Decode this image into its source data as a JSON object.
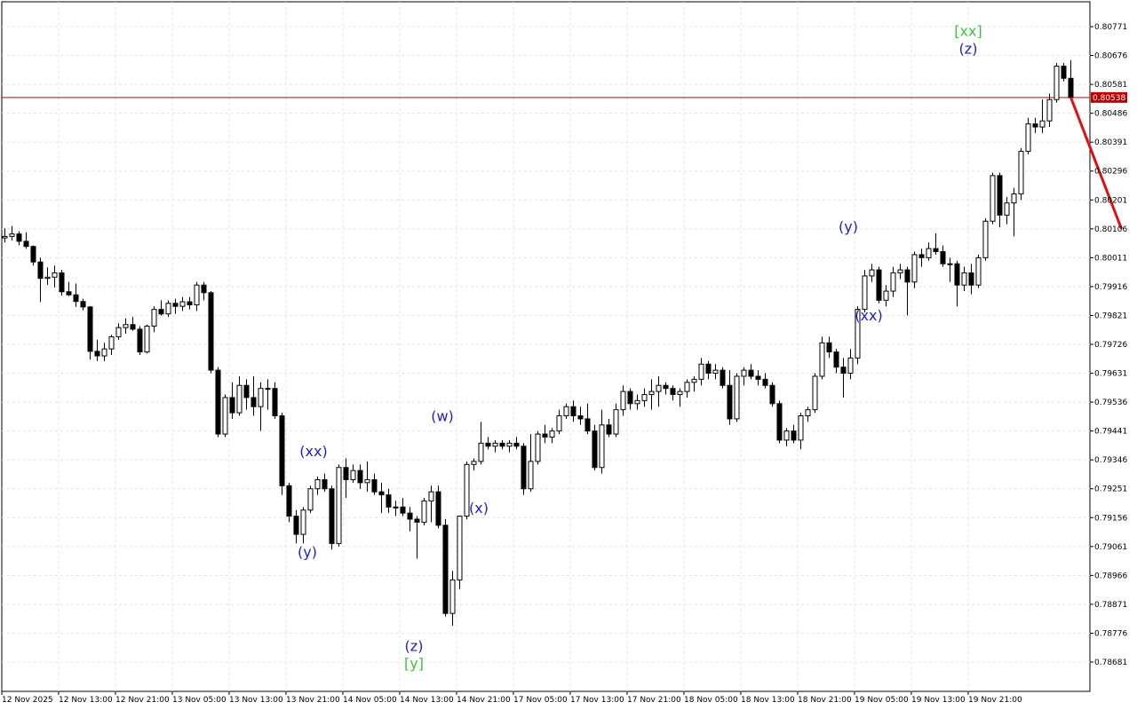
{
  "chart_data": {
    "type": "candlestick",
    "ylim": [
      0.78616,
      0.80826
    ],
    "y_ticks": [
      "0.80771",
      "0.80676",
      "0.80581",
      "0.80486",
      "0.80391",
      "0.80296",
      "0.80201",
      "0.80106",
      "0.80011",
      "0.79916",
      "0.79821",
      "0.79726",
      "0.79631",
      "0.79536",
      "0.79441",
      "0.79346",
      "0.79251",
      "0.79156",
      "0.79061",
      "0.78966",
      "0.78871",
      "0.78776",
      "0.78681"
    ],
    "x_ticks": [
      "12 Nov 2025",
      "12 Nov 13:00",
      "12 Nov 21:00",
      "13 Nov 05:00",
      "13 Nov 13:00",
      "13 Nov 21:00",
      "14 Nov 05:00",
      "14 Nov 13:00",
      "14 Nov 21:00",
      "17 Nov 05:00",
      "17 Nov 13:00",
      "17 Nov 21:00",
      "18 Nov 05:00",
      "18 Nov 13:00",
      "18 Nov 21:00",
      "19 Nov 05:00",
      "19 Nov 13:00",
      "19 Nov 21:00"
    ],
    "grid": true,
    "current_price": "0.80538",
    "current_price_value": 0.80538,
    "candles": [
      {
        "o": 0.80076,
        "h": 0.80108,
        "l": 0.80061,
        "c": 0.80081
      },
      {
        "o": 0.80081,
        "h": 0.80115,
        "l": 0.80068,
        "c": 0.80089
      },
      {
        "o": 0.80089,
        "h": 0.80098,
        "l": 0.80052,
        "c": 0.80065
      },
      {
        "o": 0.80065,
        "h": 0.80095,
        "l": 0.8004,
        "c": 0.80048
      },
      {
        "o": 0.80048,
        "h": 0.80051,
        "l": 0.79985,
        "c": 0.79997
      },
      {
        "o": 0.79997,
        "h": 0.80011,
        "l": 0.79865,
        "c": 0.79943
      },
      {
        "o": 0.79943,
        "h": 0.79979,
        "l": 0.79922,
        "c": 0.79947
      },
      {
        "o": 0.79947,
        "h": 0.79985,
        "l": 0.79913,
        "c": 0.79961
      },
      {
        "o": 0.79961,
        "h": 0.79971,
        "l": 0.79886,
        "c": 0.79899
      },
      {
        "o": 0.79899,
        "h": 0.79931,
        "l": 0.79885,
        "c": 0.79889
      },
      {
        "o": 0.79889,
        "h": 0.79926,
        "l": 0.79849,
        "c": 0.79867
      },
      {
        "o": 0.79867,
        "h": 0.79876,
        "l": 0.79838,
        "c": 0.79849
      },
      {
        "o": 0.79849,
        "h": 0.79852,
        "l": 0.79676,
        "c": 0.79703
      },
      {
        "o": 0.79703,
        "h": 0.79741,
        "l": 0.79671,
        "c": 0.79688
      },
      {
        "o": 0.79688,
        "h": 0.79731,
        "l": 0.79671,
        "c": 0.79711
      },
      {
        "o": 0.79711,
        "h": 0.79757,
        "l": 0.79691,
        "c": 0.79751
      },
      {
        "o": 0.79751,
        "h": 0.79795,
        "l": 0.79741,
        "c": 0.79781
      },
      {
        "o": 0.79781,
        "h": 0.79811,
        "l": 0.79761,
        "c": 0.79791
      },
      {
        "o": 0.79791,
        "h": 0.79816,
        "l": 0.79771,
        "c": 0.79776
      },
      {
        "o": 0.79776,
        "h": 0.79786,
        "l": 0.79691,
        "c": 0.79701
      },
      {
        "o": 0.79701,
        "h": 0.79791,
        "l": 0.79696,
        "c": 0.79786
      },
      {
        "o": 0.79786,
        "h": 0.79851,
        "l": 0.79766,
        "c": 0.79841
      },
      {
        "o": 0.79841,
        "h": 0.79871,
        "l": 0.79821,
        "c": 0.79826
      },
      {
        "o": 0.79826,
        "h": 0.79871,
        "l": 0.79816,
        "c": 0.79861
      },
      {
        "o": 0.79861,
        "h": 0.79876,
        "l": 0.79826,
        "c": 0.79851
      },
      {
        "o": 0.79851,
        "h": 0.79881,
        "l": 0.79836,
        "c": 0.79866
      },
      {
        "o": 0.79866,
        "h": 0.79881,
        "l": 0.79841,
        "c": 0.79856
      },
      {
        "o": 0.79856,
        "h": 0.79931,
        "l": 0.79836,
        "c": 0.79921
      },
      {
        "o": 0.79921,
        "h": 0.79931,
        "l": 0.79871,
        "c": 0.79896
      },
      {
        "o": 0.79896,
        "h": 0.79901,
        "l": 0.79631,
        "c": 0.79641
      },
      {
        "o": 0.79641,
        "h": 0.79651,
        "l": 0.79421,
        "c": 0.79431
      },
      {
        "o": 0.79431,
        "h": 0.79561,
        "l": 0.79421,
        "c": 0.79551
      },
      {
        "o": 0.79551,
        "h": 0.79601,
        "l": 0.79481,
        "c": 0.79501
      },
      {
        "o": 0.79501,
        "h": 0.79621,
        "l": 0.79491,
        "c": 0.79591
      },
      {
        "o": 0.79591,
        "h": 0.79611,
        "l": 0.79511,
        "c": 0.79551
      },
      {
        "o": 0.79551,
        "h": 0.79621,
        "l": 0.79491,
        "c": 0.79521
      },
      {
        "o": 0.79521,
        "h": 0.79601,
        "l": 0.79441,
        "c": 0.79581
      },
      {
        "o": 0.79581,
        "h": 0.79611,
        "l": 0.79511,
        "c": 0.79581
      },
      {
        "o": 0.79581,
        "h": 0.79601,
        "l": 0.79481,
        "c": 0.79491
      },
      {
        "o": 0.79491,
        "h": 0.79501,
        "l": 0.79231,
        "c": 0.79261
      },
      {
        "o": 0.79261,
        "h": 0.79271,
        "l": 0.79141,
        "c": 0.79161
      },
      {
        "o": 0.79161,
        "h": 0.79181,
        "l": 0.79071,
        "c": 0.79101
      },
      {
        "o": 0.79101,
        "h": 0.79191,
        "l": 0.79071,
        "c": 0.79181
      },
      {
        "o": 0.79181,
        "h": 0.79261,
        "l": 0.79171,
        "c": 0.79251
      },
      {
        "o": 0.79251,
        "h": 0.79291,
        "l": 0.79231,
        "c": 0.79281
      },
      {
        "o": 0.79281,
        "h": 0.79301,
        "l": 0.79241,
        "c": 0.79251
      },
      {
        "o": 0.79251,
        "h": 0.79261,
        "l": 0.79051,
        "c": 0.79071
      },
      {
        "o": 0.79071,
        "h": 0.79331,
        "l": 0.79061,
        "c": 0.79321
      },
      {
        "o": 0.79321,
        "h": 0.79351,
        "l": 0.79221,
        "c": 0.79281
      },
      {
        "o": 0.79281,
        "h": 0.79331,
        "l": 0.79271,
        "c": 0.79311
      },
      {
        "o": 0.79311,
        "h": 0.79331,
        "l": 0.79251,
        "c": 0.79271
      },
      {
        "o": 0.79271,
        "h": 0.79341,
        "l": 0.79241,
        "c": 0.79281
      },
      {
        "o": 0.79281,
        "h": 0.79301,
        "l": 0.79231,
        "c": 0.79241
      },
      {
        "o": 0.79241,
        "h": 0.79271,
        "l": 0.79171,
        "c": 0.79231
      },
      {
        "o": 0.79231,
        "h": 0.79251,
        "l": 0.79171,
        "c": 0.79191
      },
      {
        "o": 0.79191,
        "h": 0.79211,
        "l": 0.79161,
        "c": 0.79191
      },
      {
        "o": 0.79191,
        "h": 0.79221,
        "l": 0.79161,
        "c": 0.79171
      },
      {
        "o": 0.79171,
        "h": 0.79191,
        "l": 0.79111,
        "c": 0.79151
      },
      {
        "o": 0.79151,
        "h": 0.79161,
        "l": 0.79021,
        "c": 0.79141
      },
      {
        "o": 0.79141,
        "h": 0.79221,
        "l": 0.79131,
        "c": 0.79211
      },
      {
        "o": 0.79211,
        "h": 0.79261,
        "l": 0.79141,
        "c": 0.79241
      },
      {
        "o": 0.79241,
        "h": 0.79261,
        "l": 0.79121,
        "c": 0.79131
      },
      {
        "o": 0.79131,
        "h": 0.79151,
        "l": 0.78831,
        "c": 0.78841
      },
      {
        "o": 0.78841,
        "h": 0.78981,
        "l": 0.78801,
        "c": 0.78951
      },
      {
        "o": 0.78951,
        "h": 0.79161,
        "l": 0.78921,
        "c": 0.79161
      },
      {
        "o": 0.79161,
        "h": 0.79341,
        "l": 0.79151,
        "c": 0.79331
      },
      {
        "o": 0.79331,
        "h": 0.79351,
        "l": 0.79311,
        "c": 0.79341
      },
      {
        "o": 0.79341,
        "h": 0.79471,
        "l": 0.79331,
        "c": 0.79401
      },
      {
        "o": 0.79401,
        "h": 0.79421,
        "l": 0.79381,
        "c": 0.79391
      },
      {
        "o": 0.79391,
        "h": 0.79411,
        "l": 0.79371,
        "c": 0.79401
      },
      {
        "o": 0.79401,
        "h": 0.79411,
        "l": 0.79381,
        "c": 0.79391
      },
      {
        "o": 0.79391,
        "h": 0.79411,
        "l": 0.79371,
        "c": 0.79401
      },
      {
        "o": 0.79401,
        "h": 0.79421,
        "l": 0.79381,
        "c": 0.79391
      },
      {
        "o": 0.79391,
        "h": 0.79401,
        "l": 0.79231,
        "c": 0.79251
      },
      {
        "o": 0.79251,
        "h": 0.79431,
        "l": 0.79241,
        "c": 0.79341
      },
      {
        "o": 0.79341,
        "h": 0.79441,
        "l": 0.79331,
        "c": 0.79431
      },
      {
        "o": 0.79431,
        "h": 0.79461,
        "l": 0.79401,
        "c": 0.79421
      },
      {
        "o": 0.79421,
        "h": 0.79451,
        "l": 0.79401,
        "c": 0.79441
      },
      {
        "o": 0.79441,
        "h": 0.79511,
        "l": 0.79431,
        "c": 0.79491
      },
      {
        "o": 0.79491,
        "h": 0.79531,
        "l": 0.79481,
        "c": 0.79521
      },
      {
        "o": 0.79521,
        "h": 0.79541,
        "l": 0.79471,
        "c": 0.79491
      },
      {
        "o": 0.79491,
        "h": 0.79521,
        "l": 0.79461,
        "c": 0.79481
      },
      {
        "o": 0.79481,
        "h": 0.79531,
        "l": 0.79431,
        "c": 0.79441
      },
      {
        "o": 0.79441,
        "h": 0.79461,
        "l": 0.79311,
        "c": 0.79321
      },
      {
        "o": 0.79321,
        "h": 0.79511,
        "l": 0.79301,
        "c": 0.79461
      },
      {
        "o": 0.79461,
        "h": 0.79481,
        "l": 0.79421,
        "c": 0.79431
      },
      {
        "o": 0.79431,
        "h": 0.79531,
        "l": 0.79421,
        "c": 0.79511
      },
      {
        "o": 0.79511,
        "h": 0.79591,
        "l": 0.79491,
        "c": 0.79571
      },
      {
        "o": 0.79571,
        "h": 0.79581,
        "l": 0.79511,
        "c": 0.79531
      },
      {
        "o": 0.79531,
        "h": 0.79561,
        "l": 0.79511,
        "c": 0.79541
      },
      {
        "o": 0.79541,
        "h": 0.79581,
        "l": 0.79521,
        "c": 0.79561
      },
      {
        "o": 0.79561,
        "h": 0.79611,
        "l": 0.79511,
        "c": 0.79571
      },
      {
        "o": 0.79571,
        "h": 0.79621,
        "l": 0.79521,
        "c": 0.79591
      },
      {
        "o": 0.79591,
        "h": 0.79601,
        "l": 0.79561,
        "c": 0.79581
      },
      {
        "o": 0.79581,
        "h": 0.79591,
        "l": 0.79541,
        "c": 0.79561
      },
      {
        "o": 0.79561,
        "h": 0.79581,
        "l": 0.79521,
        "c": 0.79571
      },
      {
        "o": 0.79571,
        "h": 0.79611,
        "l": 0.79551,
        "c": 0.79601
      },
      {
        "o": 0.79601,
        "h": 0.79621,
        "l": 0.79571,
        "c": 0.79611
      },
      {
        "o": 0.79611,
        "h": 0.79681,
        "l": 0.79591,
        "c": 0.79661
      },
      {
        "o": 0.79661,
        "h": 0.79671,
        "l": 0.79611,
        "c": 0.79631
      },
      {
        "o": 0.79631,
        "h": 0.79661,
        "l": 0.79611,
        "c": 0.79641
      },
      {
        "o": 0.79641,
        "h": 0.79651,
        "l": 0.79581,
        "c": 0.79591
      },
      {
        "o": 0.79591,
        "h": 0.79641,
        "l": 0.79461,
        "c": 0.79481
      },
      {
        "o": 0.79481,
        "h": 0.79631,
        "l": 0.79471,
        "c": 0.79621
      },
      {
        "o": 0.79621,
        "h": 0.79651,
        "l": 0.79591,
        "c": 0.79641
      },
      {
        "o": 0.79641,
        "h": 0.79661,
        "l": 0.79611,
        "c": 0.79621
      },
      {
        "o": 0.79621,
        "h": 0.79641,
        "l": 0.79591,
        "c": 0.79611
      },
      {
        "o": 0.79611,
        "h": 0.79631,
        "l": 0.79581,
        "c": 0.79591
      },
      {
        "o": 0.79591,
        "h": 0.79601,
        "l": 0.79521,
        "c": 0.79531
      },
      {
        "o": 0.79531,
        "h": 0.79541,
        "l": 0.79401,
        "c": 0.79411
      },
      {
        "o": 0.79411,
        "h": 0.79451,
        "l": 0.79391,
        "c": 0.79441
      },
      {
        "o": 0.79441,
        "h": 0.79461,
        "l": 0.79401,
        "c": 0.79411
      },
      {
        "o": 0.79411,
        "h": 0.79501,
        "l": 0.79381,
        "c": 0.79491
      },
      {
        "o": 0.79491,
        "h": 0.79521,
        "l": 0.79471,
        "c": 0.79511
      },
      {
        "o": 0.79511,
        "h": 0.79631,
        "l": 0.79501,
        "c": 0.79621
      },
      {
        "o": 0.79621,
        "h": 0.79751,
        "l": 0.79611,
        "c": 0.79731
      },
      {
        "o": 0.79731,
        "h": 0.79751,
        "l": 0.79681,
        "c": 0.79701
      },
      {
        "o": 0.79701,
        "h": 0.79711,
        "l": 0.79631,
        "c": 0.79651
      },
      {
        "o": 0.79651,
        "h": 0.79681,
        "l": 0.79551,
        "c": 0.79631
      },
      {
        "o": 0.79631,
        "h": 0.79711,
        "l": 0.79611,
        "c": 0.79681
      },
      {
        "o": 0.79681,
        "h": 0.79851,
        "l": 0.79661,
        "c": 0.79841
      },
      {
        "o": 0.79841,
        "h": 0.79971,
        "l": 0.79831,
        "c": 0.79951
      },
      {
        "o": 0.79951,
        "h": 0.79991,
        "l": 0.79931,
        "c": 0.79971
      },
      {
        "o": 0.79971,
        "h": 0.79981,
        "l": 0.79861,
        "c": 0.79871
      },
      {
        "o": 0.79871,
        "h": 0.79921,
        "l": 0.79851,
        "c": 0.79901
      },
      {
        "o": 0.79901,
        "h": 0.79981,
        "l": 0.79881,
        "c": 0.79961
      },
      {
        "o": 0.79961,
        "h": 0.79991,
        "l": 0.79941,
        "c": 0.79971
      },
      {
        "o": 0.79971,
        "h": 0.79981,
        "l": 0.79821,
        "c": 0.79931
      },
      {
        "o": 0.79931,
        "h": 0.80031,
        "l": 0.79911,
        "c": 0.80021
      },
      {
        "o": 0.80021,
        "h": 0.80041,
        "l": 0.79981,
        "c": 0.80011
      },
      {
        "o": 0.80011,
        "h": 0.80061,
        "l": 0.80001,
        "c": 0.80041
      },
      {
        "o": 0.80041,
        "h": 0.80091,
        "l": 0.80021,
        "c": 0.80031
      },
      {
        "o": 0.80031,
        "h": 0.80051,
        "l": 0.79981,
        "c": 0.79991
      },
      {
        "o": 0.79991,
        "h": 0.80011,
        "l": 0.79931,
        "c": 0.79991
      },
      {
        "o": 0.79991,
        "h": 0.80001,
        "l": 0.79851,
        "c": 0.79921
      },
      {
        "o": 0.79921,
        "h": 0.79981,
        "l": 0.79901,
        "c": 0.79961
      },
      {
        "o": 0.79961,
        "h": 0.79991,
        "l": 0.79891,
        "c": 0.79921
      },
      {
        "o": 0.79921,
        "h": 0.80021,
        "l": 0.79911,
        "c": 0.80011
      },
      {
        "o": 0.80011,
        "h": 0.80141,
        "l": 0.80001,
        "c": 0.80131
      },
      {
        "o": 0.80131,
        "h": 0.80291,
        "l": 0.80121,
        "c": 0.80281
      },
      {
        "o": 0.80281,
        "h": 0.80291,
        "l": 0.80111,
        "c": 0.80151
      },
      {
        "o": 0.80151,
        "h": 0.80211,
        "l": 0.80121,
        "c": 0.80191
      },
      {
        "o": 0.80191,
        "h": 0.80241,
        "l": 0.80081,
        "c": 0.80221
      },
      {
        "o": 0.80221,
        "h": 0.80371,
        "l": 0.80201,
        "c": 0.80361
      },
      {
        "o": 0.80361,
        "h": 0.80471,
        "l": 0.80351,
        "c": 0.80451
      },
      {
        "o": 0.80451,
        "h": 0.80471,
        "l": 0.80421,
        "c": 0.80441
      },
      {
        "o": 0.80441,
        "h": 0.80531,
        "l": 0.80421,
        "c": 0.80461
      },
      {
        "o": 0.80461,
        "h": 0.80551,
        "l": 0.80441,
        "c": 0.80531
      },
      {
        "o": 0.80531,
        "h": 0.80651,
        "l": 0.80521,
        "c": 0.80641
      },
      {
        "o": 0.80641,
        "h": 0.80651,
        "l": 0.80591,
        "c": 0.80601
      },
      {
        "o": 0.80601,
        "h": 0.80661,
        "l": 0.80531,
        "c": 0.80538
      }
    ],
    "projection": {
      "from_value": 0.80538,
      "to_value": 0.80106
    },
    "wave_labels": [
      {
        "text": "(y)",
        "color": "#1c1cd8",
        "value": 0.79045
      },
      {
        "text": "(xx)",
        "color": "#1c1cd8",
        "value": 0.79375
      },
      {
        "text": "(z)",
        "color": "#1c1cd8",
        "value": 0.78735
      },
      {
        "text": "[y]",
        "color": "#3cc43c",
        "value": 0.78678
      },
      {
        "text": "(w)",
        "color": "#1c1cd8",
        "value": 0.79491
      },
      {
        "text": "(x)",
        "color": "#1c1cd8",
        "value": 0.79189
      },
      {
        "text": "(y)",
        "color": "#1c1cd8",
        "value": 0.80114
      },
      {
        "text": "(xx)",
        "color": "#1c1cd8",
        "value": 0.79823
      },
      {
        "text": "(z)",
        "color": "#1c1cd8",
        "value": 0.807
      },
      {
        "text": "[xx]",
        "color": "#3cc43c",
        "value": 0.80758
      }
    ]
  },
  "colors": {
    "bull_fill": "#ffffff",
    "bear_fill": "#000000",
    "candle_outline": "#000000",
    "grid": "#e4e4e4",
    "price_line": "#c00000",
    "price_tag_bg": "#c00000",
    "projection": "#e01010",
    "wave_blue": "#1c1cd8",
    "wave_green": "#3cc43c"
  }
}
